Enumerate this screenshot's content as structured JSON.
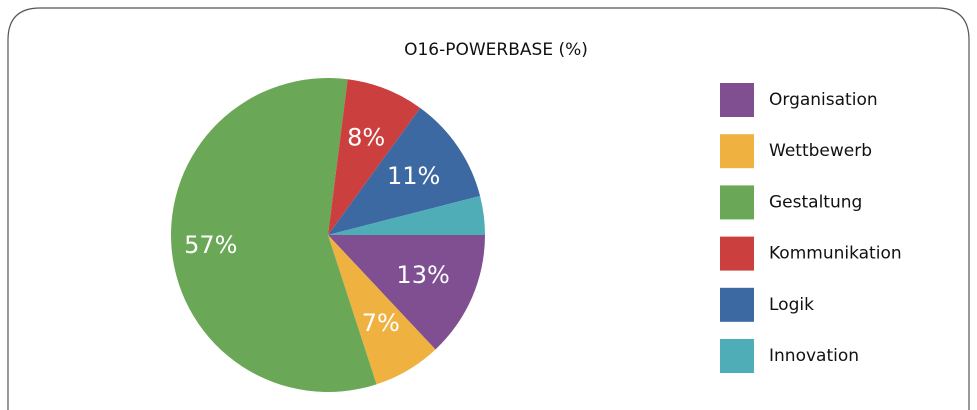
{
  "chart_data": {
    "type": "pie",
    "title": "O16-POWERBASE (%)",
    "categories": [
      "Organisation",
      "Wettbewerb",
      "Gestaltung",
      "Kommunikation",
      "Logik",
      "Innovation"
    ],
    "values": [
      13,
      7,
      57,
      8,
      11,
      4
    ],
    "value_labels": [
      "13%",
      "7%",
      "57%",
      "8%",
      "11%",
      null
    ],
    "colors": [
      "#7f4f92",
      "#efb241",
      "#6aa756",
      "#cc3f3f",
      "#3c69a1",
      "#4fadb7"
    ],
    "legend": "right"
  }
}
